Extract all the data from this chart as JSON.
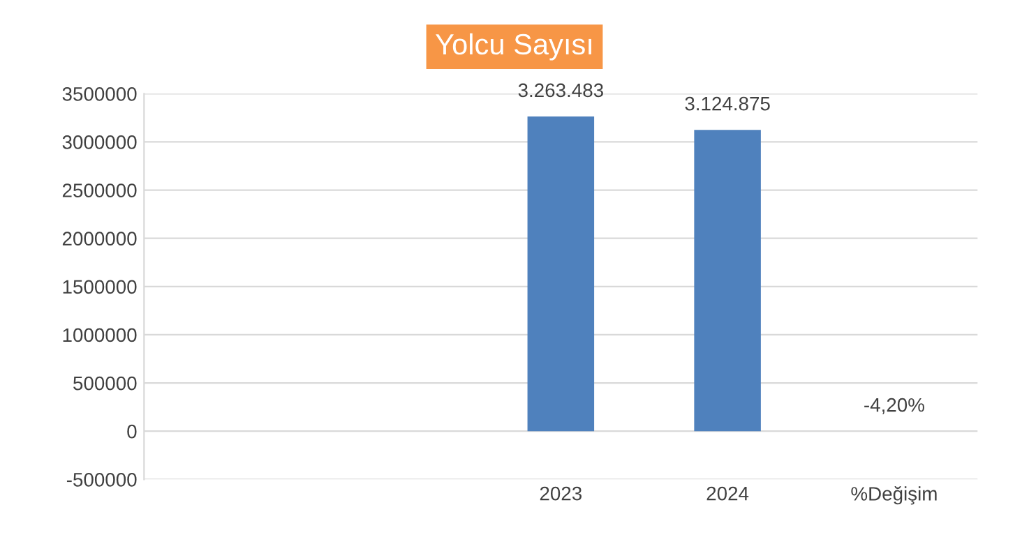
{
  "chart_data": {
    "type": "bar",
    "title": "Yolcu Sayısı",
    "categories": [
      null,
      null,
      "2023",
      "2024",
      "%Değişim"
    ],
    "values": [
      null,
      null,
      3263483,
      3124875,
      -4.2
    ],
    "value_labels": [
      null,
      null,
      "3.263.483",
      "3.124.875",
      "-4,20%"
    ],
    "color": "#4f81bd",
    "ylim": [
      -500000,
      3500000
    ],
    "yticks": [
      -500000,
      0,
      500000,
      1000000,
      1500000,
      2000000,
      2500000,
      3000000,
      3500000
    ],
    "grid": "y"
  }
}
